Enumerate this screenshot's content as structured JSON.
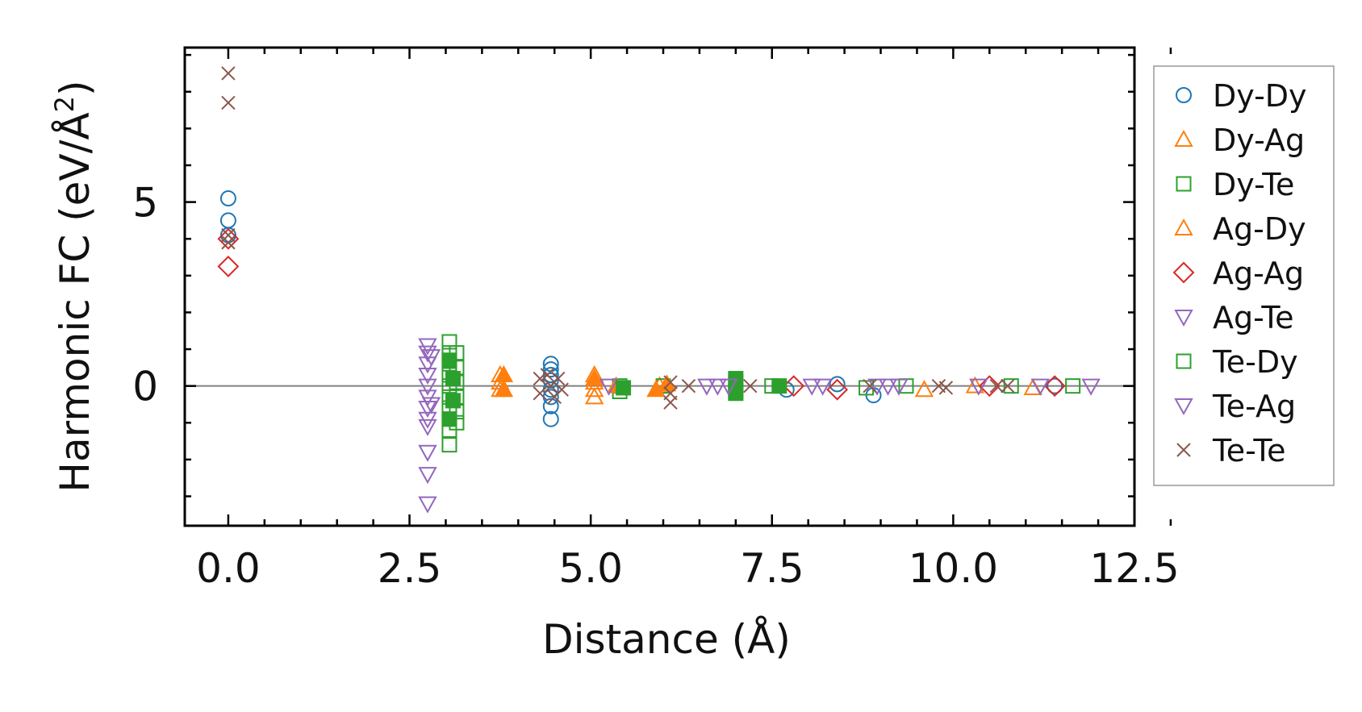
{
  "chart_data": {
    "type": "scatter",
    "title": "",
    "xlabel": "Distance (Å)",
    "ylabel_prefix": "Harmonic FC (eV/Å",
    "ylabel_sup": "2",
    "ylabel_suffix": ")",
    "xlim": [
      -0.6,
      12.5
    ],
    "ylim": [
      -3.8,
      9.2
    ],
    "xticks": [
      0.0,
      2.5,
      5.0,
      7.5,
      10.0,
      12.5
    ],
    "xtick_labels": [
      "0.0",
      "2.5",
      "5.0",
      "7.5",
      "10.0",
      "12.5"
    ],
    "yticks": [
      0,
      5
    ],
    "ytick_labels": [
      "0",
      "5"
    ],
    "grid": false,
    "zero_line": true,
    "legend_position": "right-outside",
    "series": [
      {
        "name": "Dy-Dy",
        "marker": "circle",
        "color": "#1f77b4",
        "filled": false,
        "points": [
          [
            0,
            5.1
          ],
          [
            0,
            4.5
          ],
          [
            0,
            4.1
          ],
          [
            4.45,
            0.6
          ],
          [
            4.45,
            0.45
          ],
          [
            4.45,
            0.3
          ],
          [
            4.45,
            0.15
          ],
          [
            4.45,
            -0.1
          ],
          [
            4.45,
            -0.3
          ],
          [
            4.45,
            -0.55
          ],
          [
            4.45,
            -0.9
          ],
          [
            7.7,
            -0.1
          ],
          [
            8.4,
            0.05
          ],
          [
            8.9,
            -0.25
          ],
          [
            11.4,
            0.0
          ]
        ]
      },
      {
        "name": "Dy-Ag",
        "marker": "triangle-up",
        "color": "#ff7f0e",
        "filled": false,
        "points": [
          [
            3.75,
            0.3
          ],
          [
            3.75,
            0.1
          ],
          [
            3.75,
            -0.1
          ],
          [
            5.05,
            0.3
          ],
          [
            5.05,
            0.1
          ],
          [
            5.05,
            -0.1
          ],
          [
            5.05,
            -0.3
          ],
          [
            5.95,
            0.0
          ],
          [
            9.6,
            -0.1
          ],
          [
            10.3,
            0.0
          ],
          [
            11.1,
            -0.05
          ]
        ]
      },
      {
        "name": "Dy-Te",
        "marker": "square",
        "color": "#2ca02c",
        "filled": false,
        "points": [
          [
            3.05,
            1.2
          ],
          [
            3.05,
            0.9
          ],
          [
            3.05,
            0.6
          ],
          [
            3.05,
            0.3
          ],
          [
            3.05,
            0.0
          ],
          [
            3.05,
            -0.3
          ],
          [
            3.05,
            -0.6
          ],
          [
            3.05,
            -0.9
          ],
          [
            3.05,
            -1.2
          ],
          [
            3.05,
            -1.6
          ],
          [
            3.15,
            0.9
          ],
          [
            3.15,
            0.5
          ],
          [
            3.15,
            0.1
          ],
          [
            3.15,
            -0.3
          ],
          [
            3.15,
            -0.7
          ],
          [
            3.15,
            -1.0
          ],
          [
            5.4,
            0.0
          ],
          [
            5.4,
            -0.15
          ],
          [
            6.0,
            0.0
          ],
          [
            7.0,
            0.1
          ],
          [
            7.0,
            -0.15
          ],
          [
            7.5,
            0.0
          ],
          [
            8.8,
            -0.05
          ],
          [
            9.35,
            0.0
          ],
          [
            10.8,
            0.0
          ],
          [
            11.65,
            0.0
          ]
        ]
      },
      {
        "name": "Ag-Dy",
        "marker": "triangle-up",
        "color": "#ff7f0e",
        "filled": true,
        "points": [
          [
            3.8,
            0.3
          ],
          [
            3.8,
            -0.1
          ],
          [
            5.05,
            0.2
          ],
          [
            5.35,
            0.0
          ],
          [
            5.9,
            -0.1
          ],
          [
            6.05,
            0.05
          ]
        ]
      },
      {
        "name": "Ag-Ag",
        "marker": "diamond",
        "color": "#d62728",
        "filled": false,
        "points": [
          [
            0,
            4.0
          ],
          [
            0,
            3.25
          ],
          [
            7.8,
            0.0
          ],
          [
            8.4,
            -0.1
          ],
          [
            10.5,
            0.0
          ],
          [
            11.4,
            0.0
          ]
        ]
      },
      {
        "name": "Ag-Te",
        "marker": "triangle-down",
        "color": "#9467bd",
        "filled": false,
        "points": [
          [
            2.75,
            1.1
          ],
          [
            2.75,
            0.9
          ],
          [
            2.75,
            0.6
          ],
          [
            2.75,
            0.3
          ],
          [
            2.75,
            0.0
          ],
          [
            2.75,
            -0.3
          ],
          [
            2.75,
            -0.6
          ],
          [
            2.75,
            -0.9
          ],
          [
            2.75,
            -1.1
          ],
          [
            2.75,
            -1.8
          ],
          [
            2.75,
            -2.4
          ],
          [
            2.75,
            -3.2
          ],
          [
            5.25,
            0.0
          ],
          [
            6.75,
            0.0
          ],
          [
            8.2,
            0.0
          ],
          [
            9.1,
            0.0
          ]
        ]
      },
      {
        "name": "Te-Dy",
        "marker": "square",
        "color": "#2ca02c",
        "filled": true,
        "points": [
          [
            3.05,
            0.7
          ],
          [
            3.1,
            0.2
          ],
          [
            3.1,
            -0.4
          ],
          [
            3.05,
            -0.9
          ],
          [
            5.45,
            -0.05
          ],
          [
            7.0,
            0.2
          ],
          [
            7.0,
            -0.2
          ],
          [
            7.6,
            0.0
          ]
        ]
      },
      {
        "name": "Te-Ag",
        "marker": "triangle-down",
        "color": "#9467bd",
        "filled": false,
        "points": [
          [
            2.8,
            0.8
          ],
          [
            2.8,
            -0.5
          ],
          [
            6.6,
            0.0
          ],
          [
            6.9,
            0.0
          ],
          [
            8.05,
            0.0
          ],
          [
            8.95,
            0.0
          ],
          [
            9.25,
            0.0
          ],
          [
            10.35,
            0.0
          ],
          [
            11.2,
            0.0
          ],
          [
            11.9,
            0.0
          ]
        ]
      },
      {
        "name": "Te-Te",
        "marker": "cross",
        "color": "#8c564b",
        "filled": false,
        "points": [
          [
            0,
            8.5
          ],
          [
            0,
            7.7
          ],
          [
            0,
            4.1
          ],
          [
            0,
            3.9
          ],
          [
            4.3,
            0.2
          ],
          [
            4.3,
            -0.2
          ],
          [
            4.4,
            0.3
          ],
          [
            4.45,
            0.0
          ],
          [
            4.5,
            -0.3
          ],
          [
            4.55,
            0.2
          ],
          [
            4.6,
            -0.1
          ],
          [
            6.1,
            0.1
          ],
          [
            6.1,
            -0.2
          ],
          [
            6.1,
            -0.45
          ],
          [
            6.35,
            0.0
          ],
          [
            7.2,
            0.0
          ],
          [
            8.85,
            0.0
          ],
          [
            9.8,
            0.0
          ],
          [
            9.9,
            -0.05
          ],
          [
            10.6,
            0.0
          ],
          [
            10.75,
            0.0
          ]
        ]
      }
    ]
  }
}
